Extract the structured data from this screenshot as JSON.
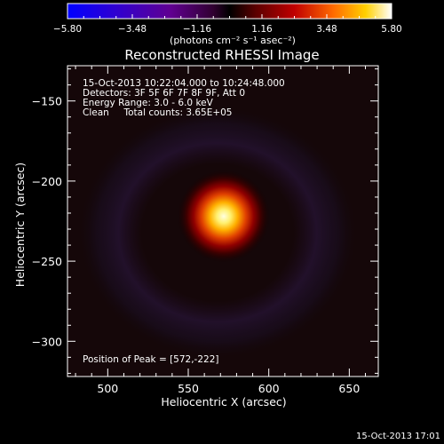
{
  "chart_data": {
    "type": "heatmap",
    "title": "Reconstructed RHESSI Image",
    "xlabel": "Heliocentric X (arcsec)",
    "ylabel": "Heliocentric Y (arcsec)",
    "xlim": [
      475,
      668
    ],
    "ylim": [
      -322,
      -128
    ],
    "x_ticks": [
      500,
      550,
      600,
      650
    ],
    "y_ticks": [
      -150,
      -200,
      -250,
      -300
    ],
    "colorbar": {
      "ticks": [
        "-5.80",
        "-3.48",
        "-1.16",
        "1.16",
        "3.48",
        "5.80"
      ],
      "unit_label": "(photons cm⁻² s⁻¹ asec⁻²)",
      "range": [
        -5.8,
        5.8
      ]
    },
    "annotations": {
      "time": "15-Oct-2013 10:22:04.000 to 10:24:48.000",
      "detectors": "Detectors: 3F 5F 6F 7F 8F 9F, Att 0",
      "energy": "Energy Range: 3.0 - 6.0 keV",
      "clean": "Clean     Total counts: 3.65E+05",
      "peak": "Position of Peak = [572,-222]"
    },
    "peak": {
      "x": 572,
      "y": -222,
      "value": 5.8
    },
    "timestamp": "15-Oct-2013 17:01"
  }
}
